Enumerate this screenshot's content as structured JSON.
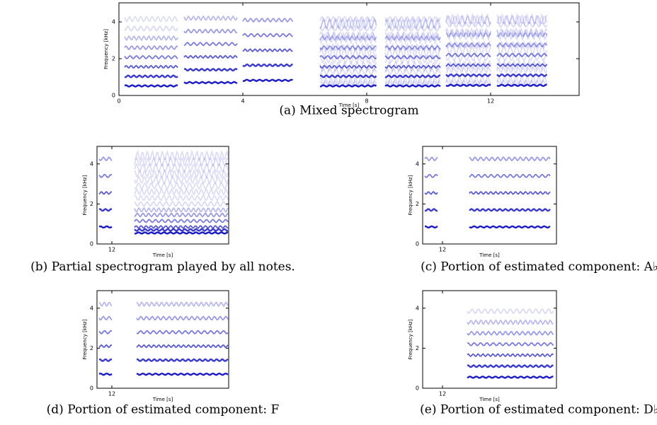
{
  "panels": [
    {
      "x_label": "Time [s]",
      "y_label": "Frequency [kHz]",
      "xticks": [
        0,
        4,
        8,
        12
      ],
      "yticks": [
        0,
        2,
        4
      ],
      "caption": "(a) Mixed spectrogram"
    },
    {
      "x_label": "Time [s]",
      "y_label": "Frequency [kHz]",
      "xticks": [
        12
      ],
      "yticks": [
        0,
        2,
        4
      ],
      "caption": "(b) Partial spectrogram played by all notes."
    },
    {
      "x_label": "Time [s]",
      "y_label": "Frequency [kHz]",
      "xticks": [
        12
      ],
      "yticks": [
        0,
        2,
        4
      ],
      "caption": "(c) Portion of estimated component: A♭"
    },
    {
      "x_label": "Time [s]",
      "y_label": "Frequency [kHz]",
      "xticks": [
        12
      ],
      "yticks": [
        0,
        2,
        4
      ],
      "caption": "(d) Portion of estimated component: F"
    },
    {
      "x_label": "Time [s]",
      "y_label": "Frequency [kHz]",
      "xticks": [
        12
      ],
      "yticks": [
        0,
        2,
        4
      ],
      "caption": "(e) Portion of estimated component: D♭"
    }
  ]
}
